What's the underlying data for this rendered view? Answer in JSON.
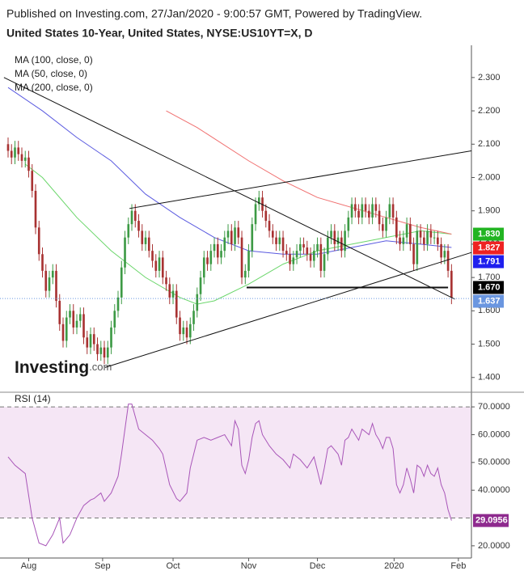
{
  "chart_data": [
    {
      "type": "candlestick",
      "source": "Published on Investing.com, 27/Jan/2020 - 9:00:57 GMT, Powered by TradingView.",
      "title": "United States 10-Year, United States, NYSE:US10YT=X, D",
      "logo": {
        "name": "Investing",
        "suffix": ".com"
      },
      "up_color": "#3d9a45",
      "down_color": "#a83232",
      "xlim": [
        -2.35,
        134.8
      ],
      "ylim": [
        1.363,
        2.387
      ],
      "yticks": [
        {
          "value": 2.3,
          "label": "2.300"
        },
        {
          "value": 2.2,
          "label": "2.200"
        },
        {
          "value": 2.1,
          "label": "2.100"
        },
        {
          "value": 2.0,
          "label": "2.000"
        },
        {
          "value": 1.9,
          "label": "1.900"
        },
        {
          "value": 1.8,
          "label": "1.800"
        },
        {
          "value": 1.7,
          "label": "1.700"
        },
        {
          "value": 1.6,
          "label": "1.600"
        },
        {
          "value": 1.5,
          "label": "1.500"
        },
        {
          "value": 1.4,
          "label": "1.400"
        }
      ],
      "x": [
        0,
        1,
        2,
        3,
        4,
        5,
        6,
        7,
        8,
        9,
        10,
        11,
        12,
        13,
        14,
        15,
        16,
        17,
        18,
        19,
        20,
        21,
        22,
        23,
        24,
        25,
        26,
        27,
        28,
        29,
        30,
        31,
        32,
        33,
        34,
        35,
        36,
        37,
        38,
        39,
        40,
        41,
        42,
        43,
        44,
        45,
        46,
        47,
        48,
        49,
        50,
        51,
        52,
        53,
        54,
        55,
        56,
        57,
        58,
        59,
        60,
        61,
        62,
        63,
        64,
        65,
        66,
        67,
        68,
        69,
        70,
        71,
        72,
        73,
        74,
        75,
        76,
        77,
        78,
        79,
        80,
        81,
        82,
        83,
        84,
        85,
        86,
        87,
        88,
        89,
        90,
        91,
        92,
        93,
        94,
        95,
        96,
        97,
        98,
        99,
        100,
        101,
        102,
        103,
        104,
        105,
        106,
        107,
        108,
        109,
        110,
        111,
        112,
        113,
        114,
        115,
        116,
        117,
        118,
        119,
        120,
        121,
        122,
        123,
        124,
        125,
        126,
        127,
        128,
        129
      ],
      "open": [
        2.1,
        2.08,
        2.06,
        2.09,
        2.07,
        2.05,
        2.06,
        2.02,
        1.96,
        1.85,
        1.77,
        1.72,
        1.66,
        1.7,
        1.72,
        1.63,
        1.56,
        1.51,
        1.58,
        1.6,
        1.55,
        1.57,
        1.59,
        1.52,
        1.49,
        1.53,
        1.5,
        1.47,
        1.49,
        1.46,
        1.49,
        1.55,
        1.6,
        1.64,
        1.73,
        1.82,
        1.86,
        1.9,
        1.87,
        1.84,
        1.8,
        1.82,
        1.78,
        1.75,
        1.72,
        1.76,
        1.7,
        1.68,
        1.64,
        1.66,
        1.58,
        1.53,
        1.55,
        1.52,
        1.56,
        1.6,
        1.65,
        1.7,
        1.76,
        1.74,
        1.78,
        1.8,
        1.76,
        1.78,
        1.82,
        1.84,
        1.8,
        1.85,
        1.82,
        1.7,
        1.72,
        1.78,
        1.86,
        1.92,
        1.94,
        1.9,
        1.87,
        1.84,
        1.82,
        1.8,
        1.82,
        1.78,
        1.77,
        1.74,
        1.76,
        1.78,
        1.8,
        1.79,
        1.77,
        1.75,
        1.78,
        1.8,
        1.72,
        1.77,
        1.82,
        1.84,
        1.8,
        1.82,
        1.78,
        1.84,
        1.88,
        1.92,
        1.9,
        1.88,
        1.92,
        1.9,
        1.88,
        1.92,
        1.9,
        1.86,
        1.84,
        1.88,
        1.92,
        1.88,
        1.82,
        1.8,
        1.82,
        1.86,
        1.8,
        1.74,
        1.84,
        1.82,
        1.8,
        1.84,
        1.82,
        1.82,
        1.8,
        1.76,
        1.78,
        1.72
      ],
      "high": [
        2.12,
        2.1,
        2.11,
        2.11,
        2.09,
        2.08,
        2.08,
        2.04,
        1.98,
        1.87,
        1.79,
        1.74,
        1.72,
        1.74,
        1.74,
        1.65,
        1.58,
        1.6,
        1.62,
        1.62,
        1.59,
        1.61,
        1.61,
        1.54,
        1.55,
        1.55,
        1.52,
        1.51,
        1.51,
        1.51,
        1.57,
        1.62,
        1.66,
        1.75,
        1.84,
        1.88,
        1.92,
        1.92,
        1.89,
        1.86,
        1.84,
        1.84,
        1.8,
        1.77,
        1.78,
        1.78,
        1.72,
        1.7,
        1.68,
        1.68,
        1.6,
        1.57,
        1.57,
        1.58,
        1.62,
        1.67,
        1.72,
        1.78,
        1.78,
        1.8,
        1.82,
        1.82,
        1.8,
        1.84,
        1.86,
        1.86,
        1.87,
        1.87,
        1.84,
        1.74,
        1.8,
        1.88,
        1.94,
        1.96,
        1.96,
        1.92,
        1.89,
        1.86,
        1.84,
        1.84,
        1.84,
        1.8,
        1.79,
        1.78,
        1.8,
        1.82,
        1.82,
        1.81,
        1.79,
        1.8,
        1.82,
        1.82,
        1.79,
        1.84,
        1.86,
        1.86,
        1.84,
        1.84,
        1.86,
        1.9,
        1.94,
        1.94,
        1.92,
        1.94,
        1.94,
        1.92,
        1.94,
        1.94,
        1.92,
        1.88,
        1.9,
        1.94,
        1.94,
        1.9,
        1.84,
        1.84,
        1.88,
        1.88,
        1.82,
        1.86,
        1.86,
        1.84,
        1.86,
        1.86,
        1.84,
        1.84,
        1.82,
        1.8,
        1.8,
        1.74
      ],
      "low": [
        2.06,
        2.04,
        2.04,
        2.05,
        2.03,
        2.03,
        2.0,
        1.94,
        1.83,
        1.75,
        1.7,
        1.64,
        1.64,
        1.68,
        1.61,
        1.54,
        1.49,
        1.49,
        1.56,
        1.53,
        1.53,
        1.55,
        1.5,
        1.47,
        1.47,
        1.48,
        1.45,
        1.45,
        1.44,
        1.44,
        1.47,
        1.53,
        1.58,
        1.62,
        1.71,
        1.8,
        1.84,
        1.85,
        1.82,
        1.78,
        1.78,
        1.76,
        1.73,
        1.7,
        1.7,
        1.68,
        1.66,
        1.62,
        1.62,
        1.56,
        1.51,
        1.51,
        1.5,
        1.5,
        1.54,
        1.58,
        1.63,
        1.68,
        1.72,
        1.72,
        1.76,
        1.74,
        1.74,
        1.76,
        1.8,
        1.78,
        1.78,
        1.8,
        1.68,
        1.68,
        1.7,
        1.76,
        1.84,
        1.9,
        1.88,
        1.85,
        1.82,
        1.8,
        1.78,
        1.78,
        1.76,
        1.75,
        1.72,
        1.72,
        1.74,
        1.76,
        1.77,
        1.75,
        1.73,
        1.73,
        1.76,
        1.7,
        1.7,
        1.75,
        1.8,
        1.78,
        1.78,
        1.76,
        1.76,
        1.82,
        1.86,
        1.88,
        1.86,
        1.86,
        1.88,
        1.86,
        1.86,
        1.88,
        1.84,
        1.82,
        1.82,
        1.86,
        1.86,
        1.8,
        1.78,
        1.78,
        1.8,
        1.78,
        1.72,
        1.72,
        1.8,
        1.78,
        1.78,
        1.8,
        1.8,
        1.78,
        1.74,
        1.74,
        1.7,
        1.62
      ],
      "close": [
        2.08,
        2.06,
        2.09,
        2.07,
        2.05,
        2.06,
        2.02,
        1.96,
        1.85,
        1.77,
        1.72,
        1.66,
        1.7,
        1.72,
        1.63,
        1.56,
        1.51,
        1.58,
        1.6,
        1.55,
        1.57,
        1.59,
        1.52,
        1.49,
        1.53,
        1.5,
        1.47,
        1.49,
        1.46,
        1.49,
        1.55,
        1.6,
        1.64,
        1.73,
        1.82,
        1.86,
        1.9,
        1.87,
        1.84,
        1.8,
        1.82,
        1.78,
        1.75,
        1.72,
        1.76,
        1.7,
        1.68,
        1.64,
        1.66,
        1.58,
        1.53,
        1.55,
        1.52,
        1.56,
        1.6,
        1.65,
        1.7,
        1.76,
        1.74,
        1.78,
        1.8,
        1.76,
        1.78,
        1.82,
        1.84,
        1.8,
        1.85,
        1.82,
        1.7,
        1.72,
        1.78,
        1.86,
        1.92,
        1.94,
        1.9,
        1.87,
        1.84,
        1.82,
        1.8,
        1.82,
        1.78,
        1.77,
        1.74,
        1.76,
        1.78,
        1.8,
        1.79,
        1.77,
        1.75,
        1.78,
        1.8,
        1.72,
        1.77,
        1.82,
        1.84,
        1.8,
        1.82,
        1.78,
        1.84,
        1.88,
        1.92,
        1.9,
        1.88,
        1.92,
        1.9,
        1.88,
        1.92,
        1.9,
        1.86,
        1.84,
        1.88,
        1.92,
        1.88,
        1.82,
        1.8,
        1.82,
        1.86,
        1.8,
        1.74,
        1.84,
        1.82,
        1.8,
        1.84,
        1.82,
        1.82,
        1.8,
        1.76,
        1.78,
        1.72,
        1.64
      ],
      "overlays": [
        {
          "name": "MA (100, close, 0)",
          "color": "#5a5ae0",
          "x": [
            0,
            10,
            20,
            30,
            40,
            50,
            60,
            70,
            80,
            90,
            100,
            110,
            120,
            129
          ],
          "values": [
            2.27,
            2.2,
            2.12,
            2.05,
            1.95,
            1.88,
            1.82,
            1.78,
            1.77,
            1.77,
            1.79,
            1.81,
            1.8,
            1.79
          ]
        },
        {
          "name": "MA (50, close, 0)",
          "color": "#6ad66a",
          "x": [
            5,
            10,
            20,
            30,
            40,
            50,
            55,
            60,
            70,
            80,
            90,
            100,
            110,
            120,
            129
          ],
          "values": [
            2.04,
            2.0,
            1.88,
            1.78,
            1.7,
            1.64,
            1.62,
            1.63,
            1.68,
            1.74,
            1.78,
            1.8,
            1.82,
            1.84,
            1.83
          ]
        },
        {
          "name": "MA (200, close, 0)",
          "color": "#f07070",
          "x": [
            46,
            55,
            70,
            80,
            90,
            100,
            110,
            120,
            129
          ],
          "values": [
            2.2,
            2.15,
            2.05,
            1.99,
            1.94,
            1.91,
            1.88,
            1.85,
            1.83
          ]
        }
      ],
      "trendlines": [
        {
          "x": [
            -1.2,
            130
          ],
          "values": [
            2.3,
            1.635
          ],
          "width": 1
        },
        {
          "x": [
            28.2,
            134.8
          ],
          "values": [
            1.43,
            1.775
          ],
          "width": 1
        },
        {
          "x": [
            35.3,
            134.8
          ],
          "values": [
            1.907,
            2.08
          ],
          "width": 1
        },
        {
          "x": [
            69.4,
            128
          ],
          "values": [
            1.67,
            1.67
          ],
          "width": 2
        }
      ],
      "price_labels": [
        {
          "value": 1.83,
          "label": "1.830",
          "color": "#22b422"
        },
        {
          "value": 1.827,
          "label": "1.827",
          "color": "#ee2222"
        },
        {
          "value": 1.791,
          "label": "1.791",
          "color": "#1f1fee"
        },
        {
          "value": 1.67,
          "label": "1.670",
          "color": "#000000"
        },
        {
          "value": 1.637,
          "label": "1.637",
          "color": "#6a96e0",
          "line": "dotted"
        }
      ]
    },
    {
      "type": "line",
      "name": "RSI (14)",
      "color": "#a855b8",
      "band": [
        30,
        70
      ],
      "band_color": "#f5e6f5",
      "xlim": [
        -2.35,
        134.8
      ],
      "ylim": [
        15.6,
        74.4
      ],
      "yticks": [
        {
          "value": 70,
          "label": "70.0000"
        },
        {
          "value": 60,
          "label": "60.0000"
        },
        {
          "value": 50,
          "label": "50.0000"
        },
        {
          "value": 40,
          "label": "40.0000"
        },
        {
          "value": 20,
          "label": "20.0000"
        }
      ],
      "xticks": [
        {
          "value": 6,
          "label": "Aug"
        },
        {
          "value": 27.5,
          "label": "Sep"
        },
        {
          "value": 48,
          "label": "Oct"
        },
        {
          "value": 70,
          "label": "Nov"
        },
        {
          "value": 90,
          "label": "Dec"
        },
        {
          "value": 112.3,
          "label": "2020"
        },
        {
          "value": 131,
          "label": "Feb"
        }
      ],
      "last_color": "#8e2a8e",
      "x": [
        0,
        2,
        5,
        7,
        9,
        11,
        13,
        15,
        16,
        18,
        20,
        22,
        24,
        25,
        27,
        28,
        30,
        32,
        33,
        34,
        35,
        36,
        38,
        40,
        42,
        44,
        45,
        47,
        49,
        50,
        52,
        53,
        55,
        57,
        59,
        61,
        63,
        65,
        66,
        67,
        68,
        69,
        70,
        71,
        72,
        73,
        74,
        76,
        78,
        80,
        82,
        83,
        85,
        87,
        89,
        91,
        92,
        93,
        94,
        96,
        97,
        98,
        99,
        100,
        102,
        103,
        105,
        106,
        107,
        108,
        109,
        110,
        111,
        112,
        113,
        114,
        115,
        116,
        117,
        118,
        119,
        120,
        121,
        122,
        123,
        124,
        125,
        126,
        127,
        128,
        129
      ],
      "values": [
        52,
        49,
        46,
        30,
        21,
        20,
        24,
        30,
        21,
        24,
        30,
        34.5,
        36.5,
        37,
        39,
        36,
        39,
        45,
        53,
        62,
        71,
        71,
        62,
        60,
        58,
        55,
        53,
        42,
        37,
        36,
        39,
        48,
        58,
        59,
        58,
        59,
        60,
        56,
        65,
        62,
        49,
        46,
        51,
        59,
        64,
        65,
        60,
        56,
        53,
        51,
        48,
        53,
        51,
        48,
        52,
        42,
        48,
        55,
        56,
        53,
        49,
        58,
        59,
        62,
        58,
        62,
        60,
        64,
        60,
        58,
        55,
        59,
        59,
        55,
        42,
        39,
        42,
        48,
        44,
        39,
        49,
        48,
        45,
        49,
        46,
        45,
        48,
        42,
        39,
        33,
        29.0956
      ]
    }
  ]
}
